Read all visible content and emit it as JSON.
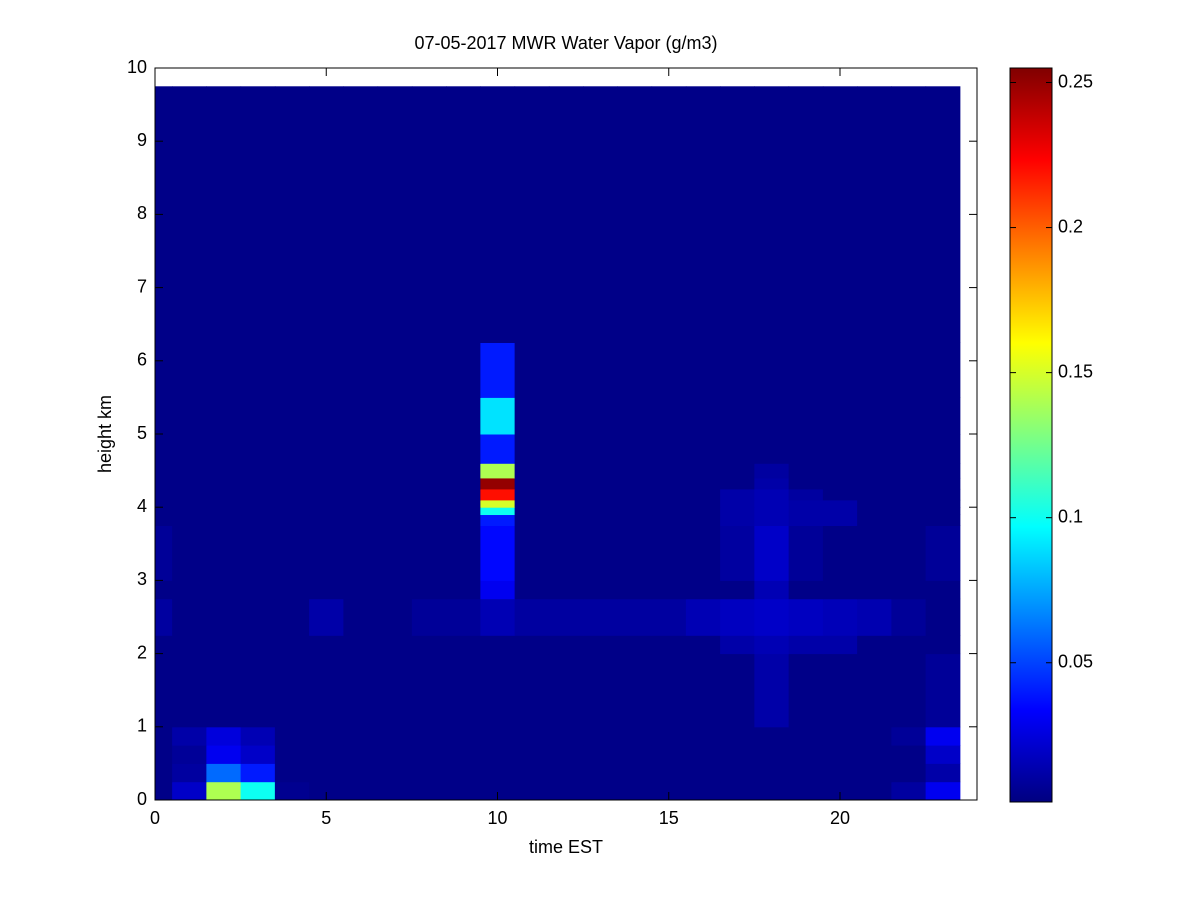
{
  "chart_data": {
    "type": "heatmap",
    "title": "07-05-2017 MWR Water Vapor (g/m3)",
    "x_label": "time EST",
    "y_label": "height km",
    "x": [
      0,
      0.5,
      1.5,
      2.5,
      3.5,
      4.5,
      5.5,
      6.5,
      7.5,
      8.5,
      9.5,
      10.5,
      11.5,
      12.5,
      13.5,
      14.5,
      15.5,
      16.5,
      17.5,
      18.5,
      19.5,
      20.5,
      21.5,
      22.5,
      23.5
    ],
    "y": [
      0,
      0.25,
      0.5,
      0.75,
      1.0,
      2.0,
      2.25,
      2.75,
      3.0,
      3.75,
      3.9,
      4.0,
      4.1,
      4.25,
      4.4,
      4.6,
      5.0,
      5.5,
      6.25,
      9.75
    ],
    "values": [
      [
        0.004,
        0.02,
        0.14,
        0.1,
        0.006,
        0.004,
        0.004,
        0.004,
        0.004,
        0.004,
        0.004,
        0.004,
        0.004,
        0.004,
        0.004,
        0.004,
        0.004,
        0.004,
        0.004,
        0.004,
        0.004,
        0.004,
        0.01,
        0.03
      ],
      [
        0.004,
        0.01,
        0.06,
        0.04,
        0.004,
        0.004,
        0.004,
        0.004,
        0.004,
        0.004,
        0.004,
        0.004,
        0.004,
        0.004,
        0.004,
        0.004,
        0.004,
        0.004,
        0.004,
        0.004,
        0.004,
        0.004,
        0.004,
        0.012
      ],
      [
        0.004,
        0.008,
        0.03,
        0.02,
        0.004,
        0.004,
        0.004,
        0.004,
        0.004,
        0.004,
        0.004,
        0.004,
        0.004,
        0.004,
        0.004,
        0.004,
        0.004,
        0.004,
        0.004,
        0.004,
        0.004,
        0.004,
        0.004,
        0.02
      ],
      [
        0.004,
        0.012,
        0.025,
        0.015,
        0.004,
        0.004,
        0.004,
        0.004,
        0.004,
        0.004,
        0.004,
        0.004,
        0.004,
        0.004,
        0.004,
        0.004,
        0.004,
        0.004,
        0.004,
        0.004,
        0.004,
        0.004,
        0.008,
        0.03
      ],
      [
        0.004,
        0.004,
        0.004,
        0.004,
        0.004,
        0.004,
        0.004,
        0.004,
        0.004,
        0.004,
        0.004,
        0.004,
        0.004,
        0.004,
        0.004,
        0.004,
        0.004,
        0.004,
        0.012,
        0.004,
        0.004,
        0.004,
        0.004,
        0.008
      ],
      [
        0.004,
        0.004,
        0.004,
        0.004,
        0.004,
        0.004,
        0.004,
        0.004,
        0.004,
        0.004,
        0.004,
        0.004,
        0.004,
        0.004,
        0.004,
        0.004,
        0.004,
        0.012,
        0.015,
        0.012,
        0.012,
        0.004,
        0.004,
        0.004
      ],
      [
        0.01,
        0.004,
        0.004,
        0.004,
        0.004,
        0.012,
        0.004,
        0.004,
        0.008,
        0.008,
        0.015,
        0.01,
        0.01,
        0.01,
        0.01,
        0.01,
        0.015,
        0.018,
        0.02,
        0.018,
        0.016,
        0.014,
        0.008,
        0.004
      ],
      [
        0.004,
        0.004,
        0.004,
        0.004,
        0.004,
        0.004,
        0.004,
        0.004,
        0.004,
        0.004,
        0.03,
        0.004,
        0.004,
        0.004,
        0.004,
        0.004,
        0.004,
        0.004,
        0.015,
        0.004,
        0.004,
        0.004,
        0.004,
        0.004
      ],
      [
        0.008,
        0.004,
        0.004,
        0.004,
        0.004,
        0.004,
        0.004,
        0.004,
        0.004,
        0.004,
        0.035,
        0.004,
        0.004,
        0.004,
        0.004,
        0.004,
        0.004,
        0.01,
        0.02,
        0.008,
        0.004,
        0.004,
        0.004,
        0.008
      ],
      [
        0.004,
        0.004,
        0.004,
        0.004,
        0.004,
        0.004,
        0.004,
        0.004,
        0.004,
        0.004,
        0.04,
        0.004,
        0.004,
        0.004,
        0.004,
        0.004,
        0.004,
        0.012,
        0.015,
        0.012,
        0.012,
        0.004,
        0.004,
        0.004
      ],
      [
        0.004,
        0.004,
        0.004,
        0.004,
        0.004,
        0.004,
        0.004,
        0.004,
        0.004,
        0.004,
        0.1,
        0.004,
        0.004,
        0.004,
        0.004,
        0.004,
        0.004,
        0.012,
        0.015,
        0.012,
        0.012,
        0.004,
        0.004,
        0.004
      ],
      [
        0.004,
        0.004,
        0.004,
        0.004,
        0.004,
        0.004,
        0.004,
        0.004,
        0.004,
        0.004,
        0.15,
        0.004,
        0.004,
        0.004,
        0.004,
        0.004,
        0.004,
        0.012,
        0.015,
        0.012,
        0.012,
        0.004,
        0.004,
        0.004
      ],
      [
        0.004,
        0.004,
        0.004,
        0.004,
        0.004,
        0.004,
        0.004,
        0.004,
        0.004,
        0.004,
        0.22,
        0.004,
        0.004,
        0.004,
        0.004,
        0.004,
        0.004,
        0.012,
        0.015,
        0.01,
        0.004,
        0.004,
        0.004,
        0.004
      ],
      [
        0.004,
        0.004,
        0.004,
        0.004,
        0.004,
        0.004,
        0.004,
        0.004,
        0.004,
        0.004,
        0.25,
        0.004,
        0.004,
        0.004,
        0.004,
        0.004,
        0.004,
        0.004,
        0.012,
        0.004,
        0.004,
        0.004,
        0.004,
        0.004
      ],
      [
        0.004,
        0.004,
        0.004,
        0.004,
        0.004,
        0.004,
        0.004,
        0.004,
        0.004,
        0.004,
        0.14,
        0.004,
        0.004,
        0.004,
        0.004,
        0.004,
        0.004,
        0.004,
        0.01,
        0.004,
        0.004,
        0.004,
        0.004,
        0.004
      ],
      [
        0.004,
        0.004,
        0.004,
        0.004,
        0.004,
        0.004,
        0.004,
        0.004,
        0.004,
        0.004,
        0.04,
        0.004,
        0.004,
        0.004,
        0.004,
        0.004,
        0.004,
        0.004,
        0.004,
        0.004,
        0.004,
        0.004,
        0.004,
        0.004
      ],
      [
        0.004,
        0.004,
        0.004,
        0.004,
        0.004,
        0.004,
        0.004,
        0.004,
        0.004,
        0.004,
        0.09,
        0.004,
        0.004,
        0.004,
        0.004,
        0.004,
        0.004,
        0.004,
        0.004,
        0.004,
        0.004,
        0.004,
        0.004,
        0.004
      ],
      [
        0.004,
        0.004,
        0.004,
        0.004,
        0.004,
        0.004,
        0.004,
        0.004,
        0.004,
        0.004,
        0.04,
        0.004,
        0.004,
        0.004,
        0.004,
        0.004,
        0.004,
        0.004,
        0.004,
        0.004,
        0.004,
        0.004,
        0.004,
        0.004
      ],
      [
        0.004,
        0.004,
        0.004,
        0.004,
        0.004,
        0.004,
        0.004,
        0.004,
        0.004,
        0.004,
        0.004,
        0.004,
        0.004,
        0.004,
        0.004,
        0.004,
        0.004,
        0.004,
        0.004,
        0.004,
        0.004,
        0.004,
        0.004,
        0.004
      ]
    ],
    "colormap": "jet",
    "clim": [
      0.002,
      0.255
    ],
    "colorbar_ticks": [
      0.05,
      0.1,
      0.15,
      0.2,
      0.25
    ],
    "xlim": [
      0,
      24
    ],
    "xticks": [
      0,
      5,
      10,
      15,
      20
    ],
    "ylim": [
      0,
      10
    ],
    "yticks": [
      0,
      1,
      2,
      3,
      4,
      5,
      6,
      7,
      8,
      9,
      10
    ]
  }
}
